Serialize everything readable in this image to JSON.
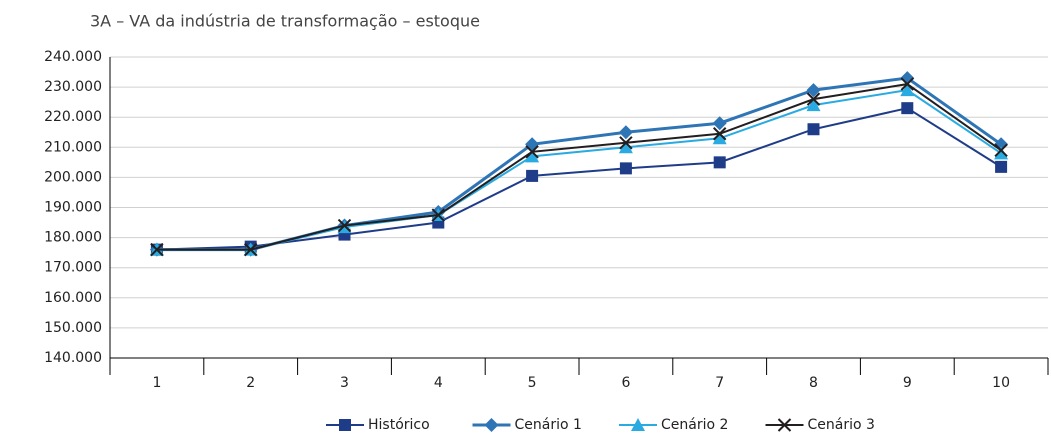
{
  "chart_data": {
    "type": "line",
    "title": "3A – VA da indústria de transformação – estoque",
    "categories": [
      "1",
      "2",
      "3",
      "4",
      "5",
      "6",
      "7",
      "8",
      "9",
      "10"
    ],
    "series": [
      {
        "name": "Histórico",
        "color": "#1f3c88",
        "marker": "square",
        "values": [
          176000,
          177000,
          181000,
          185000,
          200500,
          203000,
          205000,
          216000,
          223000,
          203500
        ]
      },
      {
        "name": "Cenário 1",
        "color": "#2e75b6",
        "marker": "diamond",
        "values": [
          176000,
          176000,
          184000,
          188500,
          211000,
          215000,
          218000,
          229000,
          233000,
          211000
        ]
      },
      {
        "name": "Cenário 2",
        "color": "#29abe2",
        "marker": "triangle",
        "values": [
          176000,
          176000,
          183500,
          187500,
          207000,
          210000,
          213000,
          224000,
          229000,
          208000
        ]
      },
      {
        "name": "Cenário 3",
        "color": "#231f20",
        "marker": "x",
        "values": [
          176000,
          176000,
          184000,
          187500,
          208500,
          211500,
          214500,
          226000,
          231000,
          209000
        ]
      }
    ],
    "ylim": [
      140000,
      240000
    ],
    "yticks": [
      {
        "value": 140000,
        "label": "140.000"
      },
      {
        "value": 150000,
        "label": "150.000"
      },
      {
        "value": 160000,
        "label": "160.000"
      },
      {
        "value": 170000,
        "label": "170.000"
      },
      {
        "value": 180000,
        "label": "180.000"
      },
      {
        "value": 190000,
        "label": "190.000"
      },
      {
        "value": 200000,
        "label": "200.000"
      },
      {
        "value": 210000,
        "label": "210.000"
      },
      {
        "value": 220000,
        "label": "220.000"
      },
      {
        "value": 230000,
        "label": "230.000"
      },
      {
        "value": 240000,
        "label": "240.000"
      }
    ],
    "grid": true,
    "legend": "bottom"
  }
}
